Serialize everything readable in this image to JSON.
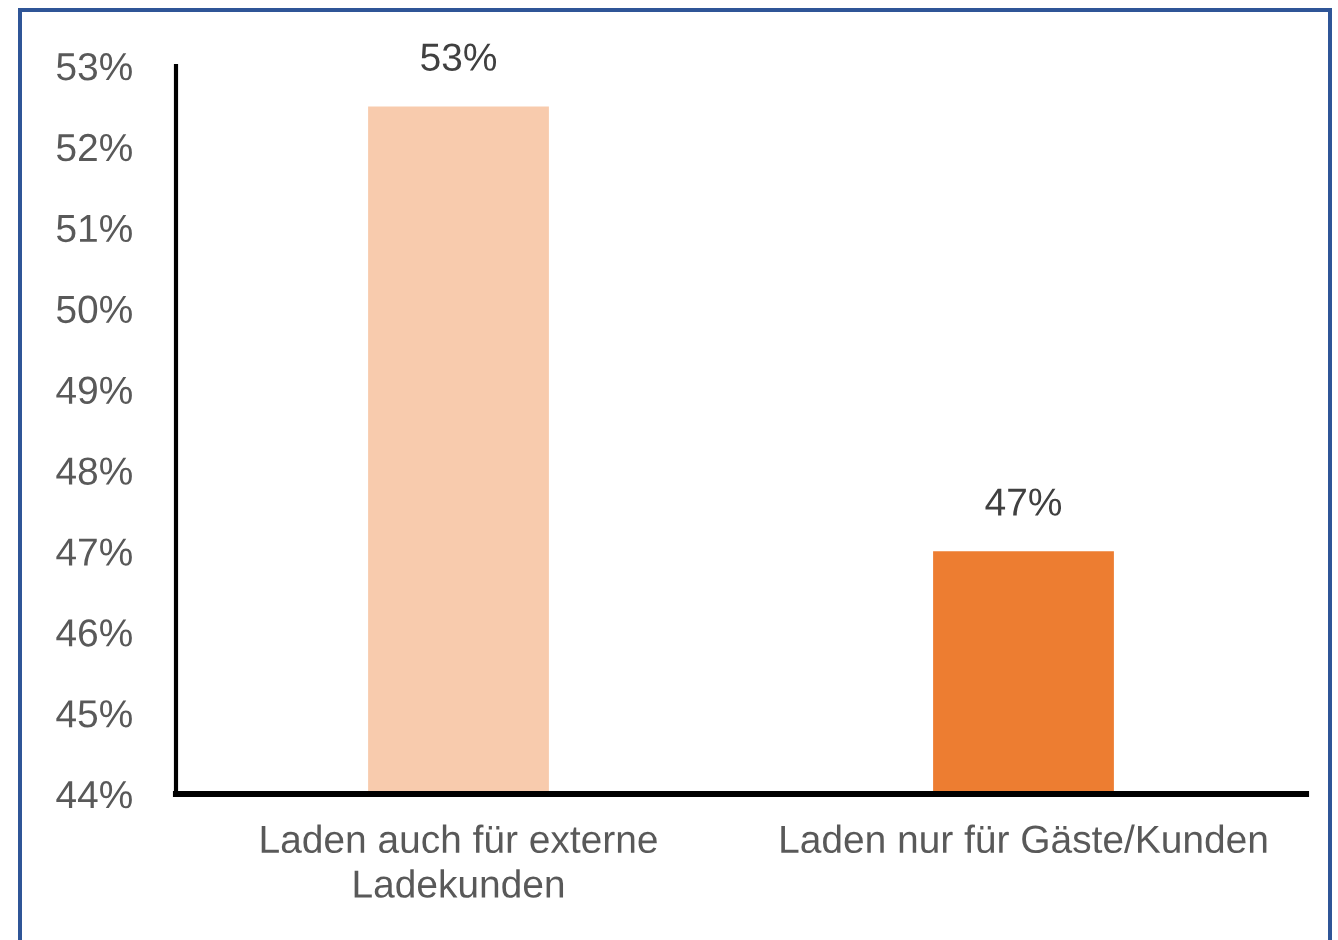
{
  "chart_data": {
    "type": "bar",
    "categories": [
      "Laden auch für externe\nLadekunden",
      "Laden nur für Gäste/Kunden"
    ],
    "values": [
      52.5,
      47.0
    ],
    "colors": [
      "#f8cbad",
      "#ed7d31"
    ],
    "value_labels": [
      "53%",
      "47%"
    ],
    "ylim": [
      44,
      53
    ],
    "yticks": [
      {
        "value": 44,
        "label": "44%"
      },
      {
        "value": 45,
        "label": "45%"
      },
      {
        "value": 46,
        "label": "46%"
      },
      {
        "value": 47,
        "label": "47%"
      },
      {
        "value": 48,
        "label": "48%"
      },
      {
        "value": 49,
        "label": "49%"
      },
      {
        "value": 50,
        "label": "50%"
      },
      {
        "value": 51,
        "label": "51%"
      },
      {
        "value": 52,
        "label": "52%"
      },
      {
        "value": 53,
        "label": "53%"
      }
    ]
  }
}
